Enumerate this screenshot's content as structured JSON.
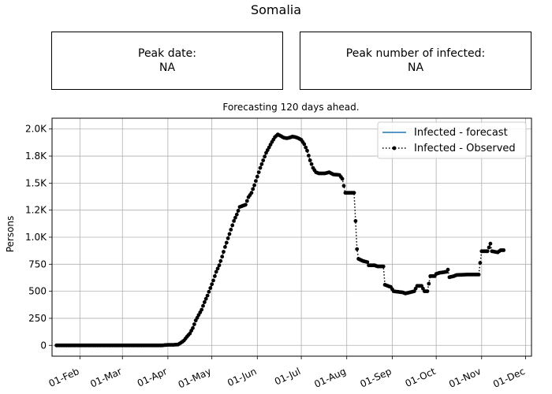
{
  "title": "Somalia",
  "peak_date_box": {
    "label": "Peak date:",
    "value": "NA"
  },
  "peak_count_box": {
    "label": "Peak number of infected:",
    "value": "NA"
  },
  "chart_data": {
    "type": "line",
    "subtitle": "Forecasting 120 days ahead.",
    "ylabel": "Persons",
    "xlabel": "",
    "x_ticks": [
      "01-Feb",
      "01-Mar",
      "01-Apr",
      "01-May",
      "01-Jun",
      "01-Jul",
      "01-Aug",
      "01-Sep",
      "01-Oct",
      "01-Nov",
      "01-Dec"
    ],
    "y_ticks": [
      {
        "value": 0,
        "label": "0"
      },
      {
        "value": 250,
        "label": "250"
      },
      {
        "value": 500,
        "label": "500"
      },
      {
        "value": 750,
        "label": "750"
      },
      {
        "value": 1000,
        "label": "1.0K"
      },
      {
        "value": 1250,
        "label": "1.2K"
      },
      {
        "value": 1500,
        "label": "1.5K"
      },
      {
        "value": 1750,
        "label": "1.8K"
      },
      {
        "value": 2000,
        "label": "2.0K"
      }
    ],
    "xlim": [
      "2020-01-13",
      "2020-12-05"
    ],
    "ylim": [
      -100,
      2100
    ],
    "grid": true,
    "legend_position": "top-right",
    "series": [
      {
        "name": "Infected - forecast",
        "style": "solid",
        "color": "#1f77b4",
        "points": []
      },
      {
        "name": "Infected - Observed",
        "style": "dotted-with-markers",
        "color": "#000000",
        "points": [
          [
            "2020-01-16",
            0
          ],
          [
            "2020-02-01",
            0
          ],
          [
            "2020-03-01",
            0
          ],
          [
            "2020-03-16",
            0
          ],
          [
            "2020-03-28",
            0
          ],
          [
            "2020-04-01",
            5
          ],
          [
            "2020-04-05",
            5
          ],
          [
            "2020-04-08",
            8
          ],
          [
            "2020-04-10",
            25
          ],
          [
            "2020-04-12",
            45
          ],
          [
            "2020-04-14",
            80
          ],
          [
            "2020-04-16",
            110
          ],
          [
            "2020-04-18",
            160
          ],
          [
            "2020-04-20",
            230
          ],
          [
            "2020-04-22",
            280
          ],
          [
            "2020-04-24",
            330
          ],
          [
            "2020-04-26",
            400
          ],
          [
            "2020-04-28",
            460
          ],
          [
            "2020-04-30",
            530
          ],
          [
            "2020-05-02",
            600
          ],
          [
            "2020-05-04",
            680
          ],
          [
            "2020-05-06",
            740
          ],
          [
            "2020-05-08",
            820
          ],
          [
            "2020-05-10",
            910
          ],
          [
            "2020-05-12",
            990
          ],
          [
            "2020-05-14",
            1070
          ],
          [
            "2020-05-16",
            1150
          ],
          [
            "2020-05-18",
            1210
          ],
          [
            "2020-05-20",
            1280
          ],
          [
            "2020-05-24",
            1300
          ],
          [
            "2020-05-26",
            1370
          ],
          [
            "2020-05-28",
            1410
          ],
          [
            "2020-05-30",
            1480
          ],
          [
            "2020-06-01",
            1560
          ],
          [
            "2020-06-03",
            1640
          ],
          [
            "2020-06-05",
            1710
          ],
          [
            "2020-06-07",
            1780
          ],
          [
            "2020-06-09",
            1830
          ],
          [
            "2020-06-11",
            1880
          ],
          [
            "2020-06-13",
            1925
          ],
          [
            "2020-06-15",
            1950
          ],
          [
            "2020-06-17",
            1935
          ],
          [
            "2020-06-19",
            1920
          ],
          [
            "2020-06-21",
            1915
          ],
          [
            "2020-06-23",
            1920
          ],
          [
            "2020-06-25",
            1930
          ],
          [
            "2020-06-27",
            1925
          ],
          [
            "2020-06-29",
            1915
          ],
          [
            "2020-07-01",
            1900
          ],
          [
            "2020-07-03",
            1860
          ],
          [
            "2020-07-05",
            1800
          ],
          [
            "2020-07-07",
            1710
          ],
          [
            "2020-07-09",
            1640
          ],
          [
            "2020-07-11",
            1600
          ],
          [
            "2020-07-13",
            1590
          ],
          [
            "2020-07-17",
            1590
          ],
          [
            "2020-07-20",
            1600
          ],
          [
            "2020-07-23",
            1580
          ],
          [
            "2020-07-27",
            1575
          ],
          [
            "2020-07-29",
            1540
          ],
          [
            "2020-07-31",
            1410
          ],
          [
            "2020-08-06",
            1410
          ],
          [
            "2020-08-08",
            890
          ],
          [
            "2020-08-09",
            800
          ],
          [
            "2020-08-12",
            780
          ],
          [
            "2020-08-15",
            770
          ],
          [
            "2020-08-16",
            740
          ],
          [
            "2020-08-20",
            740
          ],
          [
            "2020-08-22",
            730
          ],
          [
            "2020-08-26",
            730
          ],
          [
            "2020-08-27",
            560
          ],
          [
            "2020-08-29",
            550
          ],
          [
            "2020-08-31",
            540
          ],
          [
            "2020-09-02",
            500
          ],
          [
            "2020-09-05",
            495
          ],
          [
            "2020-09-08",
            490
          ],
          [
            "2020-09-10",
            480
          ],
          [
            "2020-09-13",
            490
          ],
          [
            "2020-09-16",
            500
          ],
          [
            "2020-09-18",
            550
          ],
          [
            "2020-09-21",
            550
          ],
          [
            "2020-09-23",
            500
          ],
          [
            "2020-09-25",
            500
          ],
          [
            "2020-09-27",
            640
          ],
          [
            "2020-09-30",
            640
          ],
          [
            "2020-10-01",
            660
          ],
          [
            "2020-10-03",
            670
          ],
          [
            "2020-10-08",
            680
          ],
          [
            "2020-10-09",
            700
          ],
          [
            "2020-10-10",
            630
          ],
          [
            "2020-10-13",
            640
          ],
          [
            "2020-10-15",
            650
          ],
          [
            "2020-10-22",
            655
          ],
          [
            "2020-10-30",
            655
          ],
          [
            "2020-11-01",
            870
          ],
          [
            "2020-11-05",
            870
          ],
          [
            "2020-11-07",
            940
          ],
          [
            "2020-11-08",
            870
          ],
          [
            "2020-11-12",
            860
          ],
          [
            "2020-11-14",
            880
          ],
          [
            "2020-11-16",
            880
          ]
        ]
      }
    ]
  }
}
